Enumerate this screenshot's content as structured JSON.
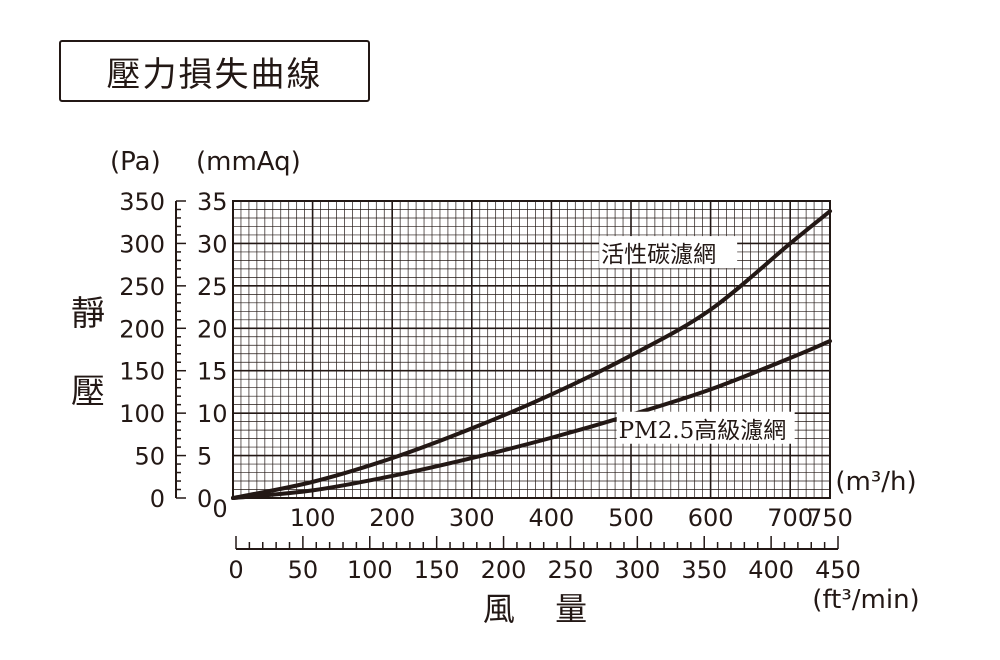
{
  "title": "壓力損失曲線",
  "colors": {
    "ink": "#231815",
    "background": "#ffffff"
  },
  "chart_data": {
    "type": "line",
    "title": "壓力損失曲線",
    "ylabel": "靜 壓",
    "xlabel": "風 量",
    "y_axes": [
      {
        "unit": "(Pa)",
        "range": [
          0,
          350
        ],
        "ticks": [
          0,
          50,
          100,
          150,
          200,
          250,
          300,
          350
        ],
        "tick_labels": [
          "0",
          "50",
          "100",
          "150",
          "200",
          "250",
          "300",
          "350"
        ]
      },
      {
        "unit": "(mmAq)",
        "range": [
          0,
          35
        ],
        "ticks": [
          0,
          5,
          10,
          15,
          20,
          25,
          30,
          35
        ],
        "tick_labels": [
          "0",
          "5",
          "10",
          "15",
          "20",
          "25",
          "30",
          "35"
        ]
      }
    ],
    "x_axes": [
      {
        "unit": "(m³/h)",
        "range": [
          0,
          750
        ],
        "ticks": [
          0,
          100,
          200,
          300,
          400,
          500,
          600,
          700,
          750
        ],
        "tick_labels": [
          "0",
          "100",
          "200",
          "300",
          "400",
          "500",
          "600",
          "700",
          "750"
        ]
      },
      {
        "unit": "(ft³/min)",
        "range": [
          0,
          450
        ],
        "ticks": [
          0,
          50,
          100,
          150,
          200,
          250,
          300,
          350,
          400,
          450
        ],
        "tick_labels": [
          "0",
          "50",
          "100",
          "150",
          "200",
          "250",
          "300",
          "350",
          "400",
          "450"
        ]
      }
    ],
    "grid": true,
    "series": [
      {
        "name": "活性碳濾網",
        "x": [
          0,
          100,
          200,
          300,
          400,
          500,
          600,
          700,
          750
        ],
        "y": [
          0,
          19,
          47,
          82,
          122,
          168,
          222,
          300,
          338
        ]
      },
      {
        "name": "PM2.5高級濾網",
        "x": [
          0,
          100,
          200,
          300,
          400,
          500,
          600,
          700,
          750
        ],
        "y": [
          0,
          9,
          26,
          47,
          71,
          98,
          128,
          165,
          185
        ]
      }
    ]
  }
}
